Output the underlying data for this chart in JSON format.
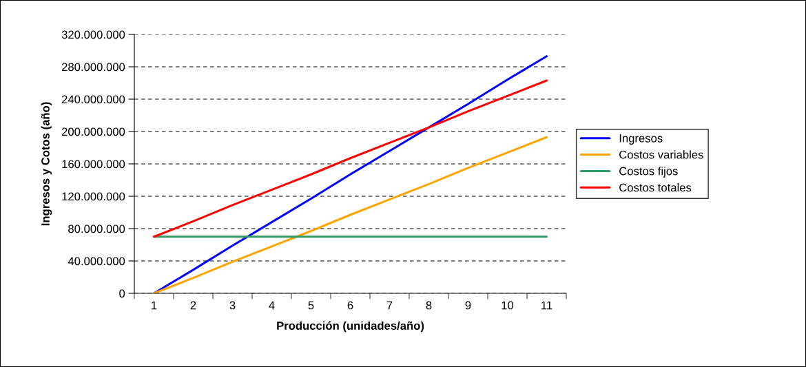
{
  "chart_data": {
    "type": "line",
    "xlabel": "Producción (unidades/año)",
    "ylabel": "Ingresos y Cotos (año)",
    "categories": [
      "1",
      "2",
      "3",
      "4",
      "5",
      "6",
      "7",
      "8",
      "9",
      "10",
      "11"
    ],
    "series": [
      {
        "name": "Ingresos",
        "color": "#0000ff",
        "values": [
          0,
          29000000,
          59000000,
          88000000,
          117000000,
          147000000,
          176000000,
          205000000,
          234000000,
          264000000,
          293000000
        ]
      },
      {
        "name": "Costos variables",
        "color": "#ffa500",
        "values": [
          0,
          19000000,
          39000000,
          58000000,
          77000000,
          97000000,
          116000000,
          135000000,
          155000000,
          174000000,
          193000000
        ]
      },
      {
        "name": "Costos fijos",
        "color": "#339966",
        "values": [
          70000000,
          70000000,
          70000000,
          70000000,
          70000000,
          70000000,
          70000000,
          70000000,
          70000000,
          70000000,
          70000000
        ]
      },
      {
        "name": "Costos totales",
        "color": "#ff0000",
        "values": [
          70000000,
          89000000,
          109000000,
          128000000,
          147000000,
          167000000,
          186000000,
          205000000,
          225000000,
          244000000,
          263000000
        ]
      }
    ],
    "ylim": [
      0,
      320000000
    ],
    "yticks": [
      0,
      {
        "value": 40000000,
        "label": "40.000.000"
      },
      {
        "value": 80000000,
        "label": "80.000.000"
      },
      {
        "value": 120000000,
        "label": "120.000.000"
      },
      {
        "value": 160000000,
        "label": "160.000.000"
      },
      {
        "value": 200000000,
        "label": "200.000.000"
      },
      {
        "value": 240000000,
        "label": "240.000.000"
      },
      {
        "value": 280000000,
        "label": "280.000.000"
      },
      {
        "value": 320000000,
        "label": "320.000.000"
      }
    ],
    "grid": "y",
    "legend": "right",
    "marker": "none",
    "line_style": "solid"
  }
}
